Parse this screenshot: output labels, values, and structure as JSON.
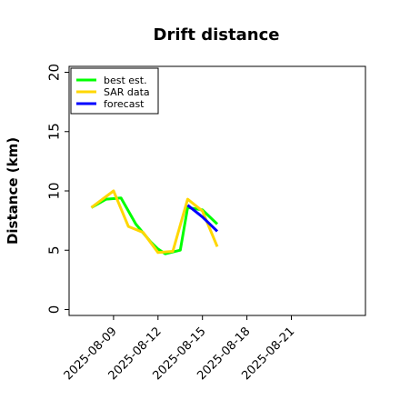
{
  "chart_data": {
    "type": "line",
    "title": "Drift distance",
    "ylabel": "Distance (km)",
    "xlabel": "",
    "x_date_range": [
      "2025-08-06",
      "2025-08-26"
    ],
    "ylim": [
      -0.5,
      20.5
    ],
    "yticks": [
      0,
      5,
      10,
      15,
      20
    ],
    "xticks": [
      "2025-08-09",
      "2025-08-12",
      "2025-08-15",
      "2025-08-18",
      "2025-08-21"
    ],
    "grid": false,
    "legend_position": "top-left",
    "series": [
      {
        "name": "best est.",
        "color": "#00ff00",
        "x": [
          "2025-08-07 12:00",
          "2025-08-08 12:00",
          "2025-08-09 12:00",
          "2025-08-10 12:00",
          "2025-08-11 12:00",
          "2025-08-12 00:00",
          "2025-08-12 12:00",
          "2025-08-13 12:00",
          "2025-08-14 00:00",
          "2025-08-15 00:00",
          "2025-08-16 00:00"
        ],
        "y": [
          8.6,
          9.3,
          9.4,
          7.2,
          5.7,
          5.1,
          4.7,
          5.0,
          8.6,
          8.4,
          7.2
        ]
      },
      {
        "name": "SAR data",
        "color": "#ffd700",
        "x": [
          "2025-08-07 12:00",
          "2025-08-09 00:00",
          "2025-08-10 00:00",
          "2025-08-11 00:00",
          "2025-08-12 00:00",
          "2025-08-13 00:00",
          "2025-08-14 00:00",
          "2025-08-15 00:00",
          "2025-08-16 00:00"
        ],
        "y": [
          8.6,
          10.0,
          7.0,
          6.5,
          4.8,
          4.9,
          9.3,
          8.3,
          5.3
        ]
      },
      {
        "name": "forecast",
        "color": "#0000ff",
        "x": [
          "2025-08-14 00:00",
          "2025-08-15 00:00",
          "2025-08-16 00:00"
        ],
        "y": [
          8.8,
          7.8,
          6.6
        ]
      }
    ]
  }
}
